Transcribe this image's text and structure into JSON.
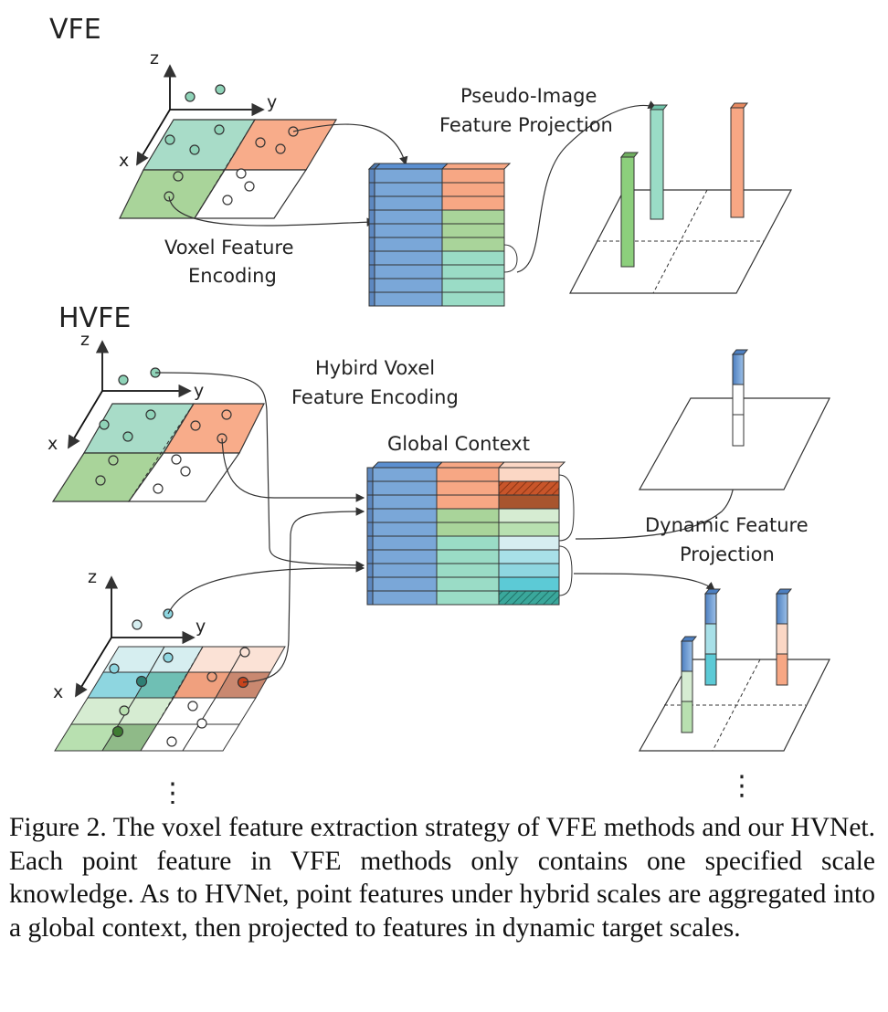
{
  "sections": {
    "vfe": "VFE",
    "hvfe": "HVFE"
  },
  "axes": {
    "x": "x",
    "y": "y",
    "z": "z"
  },
  "labels": {
    "voxel_feature_encoding_1": "Voxel Feature",
    "voxel_feature_encoding_2": "Encoding",
    "pseudo_image_1": "Pseudo-Image",
    "pseudo_image_2": "Feature Projection",
    "hybrid_voxel_1": "Hybird Voxel",
    "hybrid_voxel_2": "Feature Encoding",
    "global_context": "Global Context",
    "dynamic_projection_1": "Dynamic Feature",
    "dynamic_projection_2": "Projection",
    "ellipsis": "⋮"
  },
  "colors": {
    "blue": "#7aa7d8",
    "orange": "#f7a784",
    "green": "#a9d49a",
    "teal": "#9adcc6",
    "cyan": "#8ed6e0",
    "light_green_cell": "#a8d8b8",
    "light_orange_cell": "#fbd7c5",
    "light_teal_cell": "#d6eef0",
    "dark_orange": "#c8552a",
    "dark_teal": "#3aa79b",
    "line": "#444444"
  },
  "caption": "Figure 2. The voxel feature extraction strategy of VFE methods and our HVNet. Each point feature in VFE methods only contains one specified scale knowledge. As to HVNet, point features under hybrid scales are aggregated into a global context, then projected to features in dynamic target scales."
}
